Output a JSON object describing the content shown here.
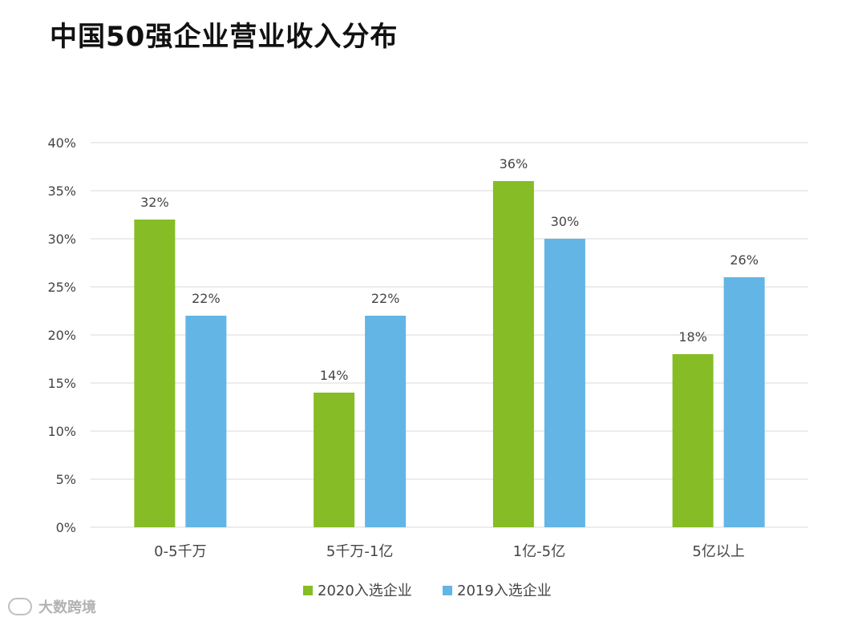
{
  "title": "中国50强企业营业收入分布",
  "watermark": "大数跨境",
  "colors": {
    "series_2020": "#86BC25",
    "series_2019": "#62B5E5",
    "grid": "#D9D9D9",
    "text": "#444444"
  },
  "chart_data": {
    "type": "bar",
    "title": "中国50强企业营业收入分布",
    "categories": [
      "0-5千万",
      "5千万-1亿",
      "1亿-5亿",
      "5亿以上"
    ],
    "series": [
      {
        "name": "2020入选企业",
        "values": [
          32,
          14,
          36,
          18
        ]
      },
      {
        "name": "2019入选企业",
        "values": [
          22,
          22,
          30,
          26
        ]
      }
    ],
    "ylim": [
      0,
      40
    ],
    "yticks": [
      0,
      5,
      10,
      15,
      20,
      25,
      30,
      35,
      40
    ],
    "y_format": "percent",
    "grid": true,
    "legend_position": "bottom",
    "data_labels": true,
    "xlabel": "",
    "ylabel": ""
  }
}
